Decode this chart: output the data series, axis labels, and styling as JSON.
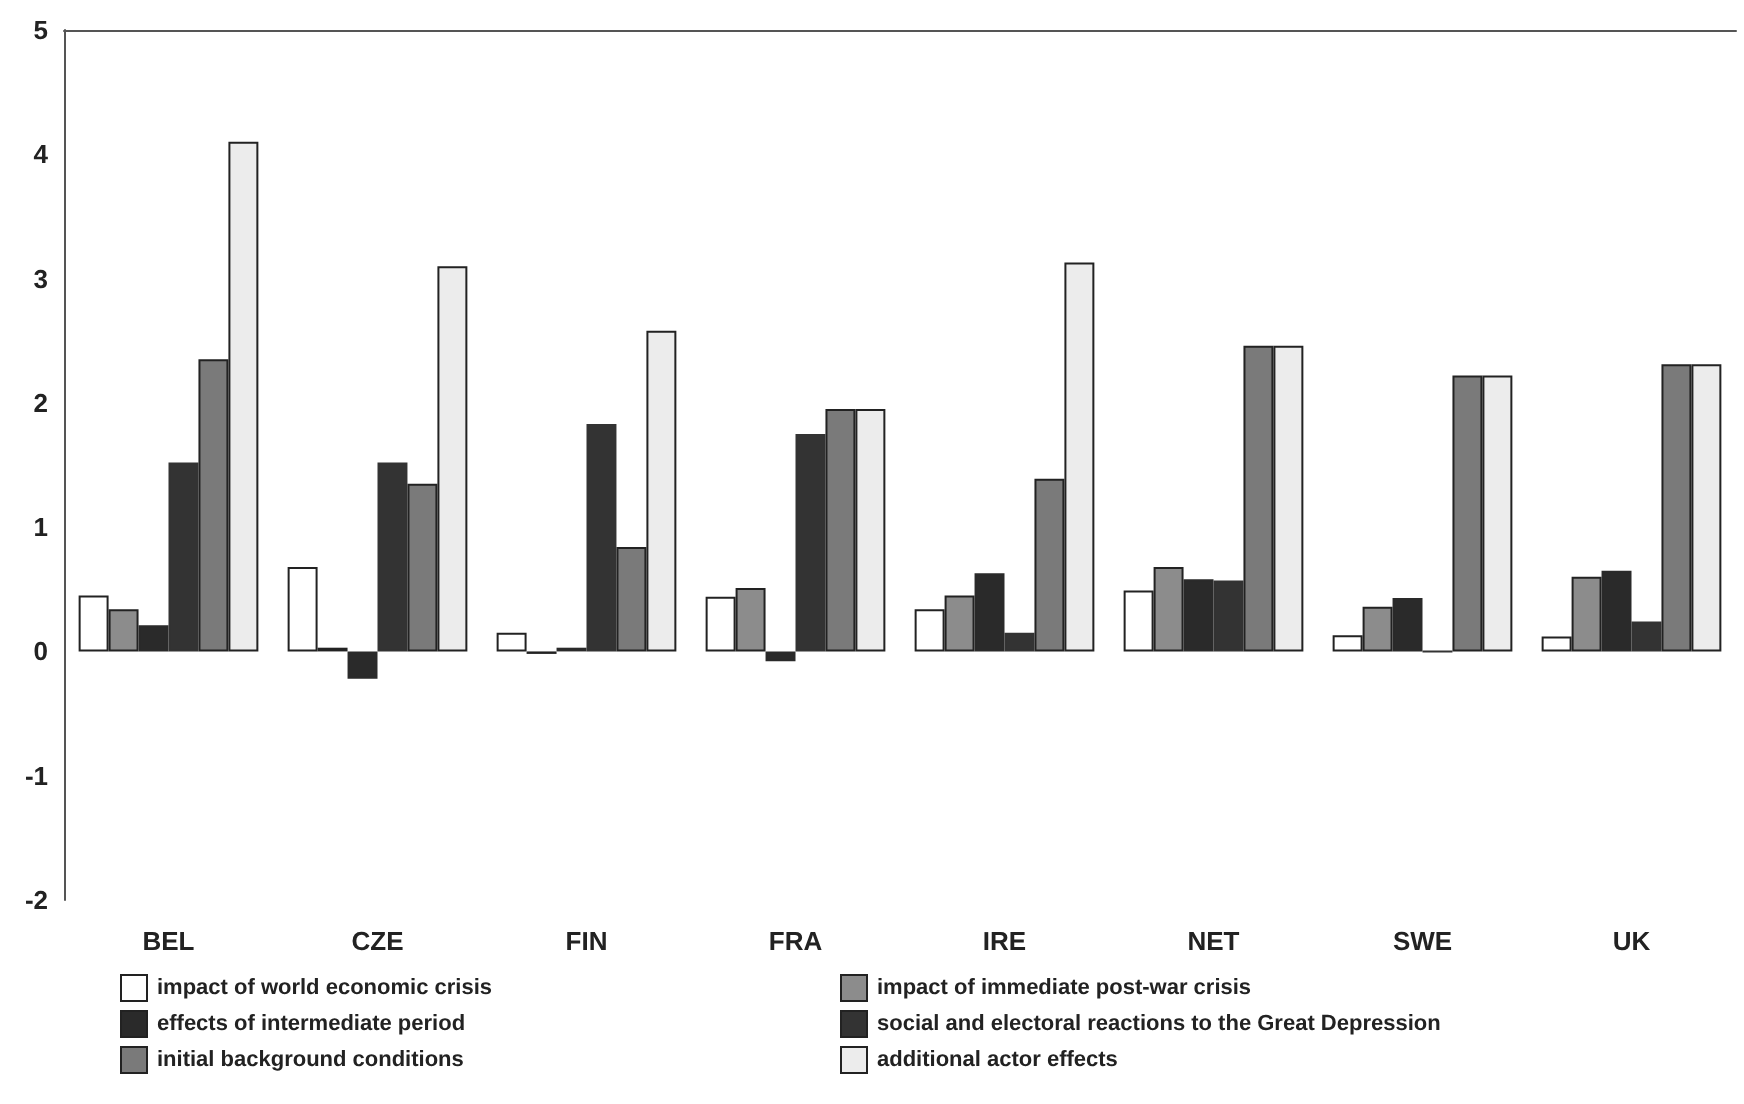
{
  "chart_data": {
    "type": "bar",
    "categories": [
      "BEL",
      "CZE",
      "FIN",
      "FRA",
      "IRE",
      "NET",
      "SWE",
      "UK"
    ],
    "series": [
      {
        "name": "impact of world economic crisis",
        "color": "#ffffff",
        "values": [
          0.45,
          0.68,
          0.15,
          0.44,
          0.34,
          0.49,
          0.13,
          0.12
        ]
      },
      {
        "name": "impact of immediate post-war crisis",
        "color": "#8c8c8c",
        "values": [
          0.34,
          0.03,
          -0.02,
          0.51,
          0.45,
          0.68,
          0.36,
          0.6
        ]
      },
      {
        "name": "effects of intermediate period",
        "color": "#2a2a2a",
        "values": [
          0.21,
          -0.22,
          0.03,
          -0.08,
          0.63,
          0.58,
          0.43,
          0.65
        ]
      },
      {
        "name": "social and electoral reactions to the Great Depression",
        "color": "#333333",
        "values": [
          1.52,
          1.52,
          1.83,
          1.75,
          0.15,
          0.57,
          0,
          0.24
        ]
      },
      {
        "name": "initial background conditions",
        "color": "#7a7a7a",
        "values": [
          2.35,
          1.35,
          0.84,
          1.95,
          1.39,
          2.46,
          2.22,
          2.31
        ]
      },
      {
        "name": "additional actor effects",
        "color": "#ececec",
        "values": [
          4.1,
          3.1,
          2.58,
          1.95,
          3.13,
          2.46,
          2.22,
          2.31
        ]
      }
    ],
    "ylim": [
      -2,
      5
    ],
    "yticks": [
      -2,
      -1,
      0,
      1,
      2,
      3,
      4,
      5
    ],
    "grid": false,
    "legend": "bottom"
  }
}
